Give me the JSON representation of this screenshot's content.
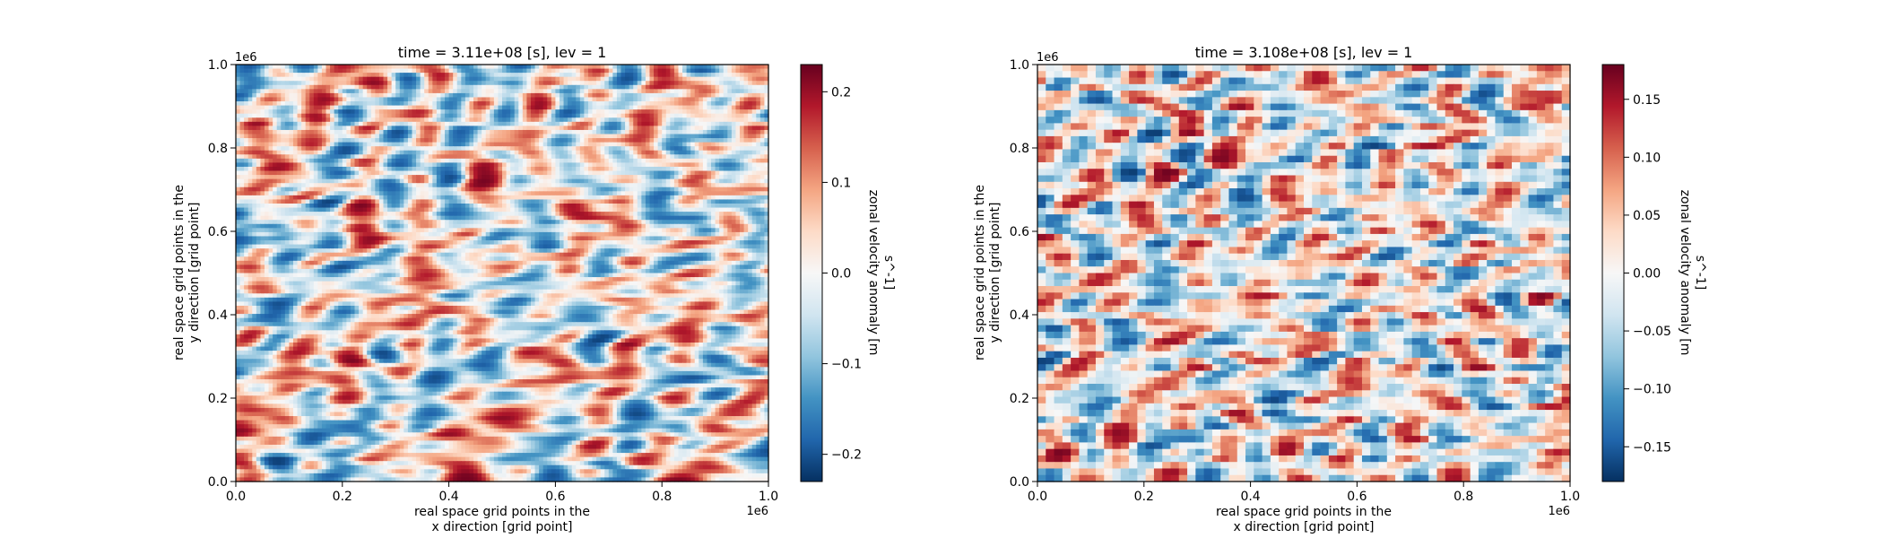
{
  "chart_data": [
    {
      "type": "heatmap",
      "title": "time = 3.11e+08 [s], lev = 1",
      "xlabel_line1": "real space grid points in the",
      "xlabel_line2": "x direction [grid point]",
      "ylabel_line1": "real space grid points in the",
      "ylabel_line2": "y direction [grid point]",
      "x_offset_label": "1e6",
      "y_offset_label": "1e6",
      "xlim": [
        0,
        1.0
      ],
      "ylim": [
        0,
        1.0
      ],
      "x_ticks": [
        0.0,
        0.2,
        0.4,
        0.6,
        0.8,
        1.0
      ],
      "x_tick_labels": [
        "0.0",
        "0.2",
        "0.4",
        "0.6",
        "0.8",
        "1.0"
      ],
      "y_ticks": [
        0.0,
        0.2,
        0.4,
        0.6,
        0.8,
        1.0
      ],
      "y_tick_labels": [
        "0.0",
        "0.2",
        "0.4",
        "0.6",
        "0.8",
        "1.0"
      ],
      "grid_resolution": "fine (smooth field)",
      "colormap": "RdBu_r",
      "color_range": [
        -0.23,
        0.23
      ],
      "colorbar_label_line1": "zonal velocity anomaly [m",
      "colorbar_label_line2": "s^-1]",
      "colorbar_ticks": [
        -0.2,
        -0.1,
        0.0,
        0.1,
        0.2
      ],
      "colorbar_tick_labels": [
        "−0.2",
        "−0.1",
        "0.0",
        "0.1",
        "0.2"
      ]
    },
    {
      "type": "heatmap",
      "title": "time = 3.108e+08 [s], lev = 1",
      "xlabel_line1": "real space grid points in the",
      "xlabel_line2": "x direction [grid point]",
      "ylabel_line1": "real space grid points in the",
      "ylabel_line2": "y direction [grid point]",
      "x_offset_label": "1e6",
      "y_offset_label": "1e6",
      "xlim": [
        0,
        1.0
      ],
      "ylim": [
        0,
        1.0
      ],
      "x_ticks": [
        0.0,
        0.2,
        0.4,
        0.6,
        0.8,
        1.0
      ],
      "x_tick_labels": [
        "0.0",
        "0.2",
        "0.4",
        "0.6",
        "0.8",
        "1.0"
      ],
      "y_ticks": [
        0.0,
        0.2,
        0.4,
        0.6,
        0.8,
        1.0
      ],
      "y_tick_labels": [
        "0.0",
        "0.2",
        "0.4",
        "0.6",
        "0.8",
        "1.0"
      ],
      "grid_resolution": "coarse (pixelated field)",
      "colormap": "RdBu_r",
      "color_range": [
        -0.18,
        0.18
      ],
      "colorbar_label_line1": "zonal velocity anomaly [m",
      "colorbar_label_line2": "s^-1]",
      "colorbar_ticks": [
        -0.15,
        -0.1,
        -0.05,
        0.0,
        0.05,
        0.1,
        0.15
      ],
      "colorbar_tick_labels": [
        "−0.15",
        "−0.10",
        "−0.05",
        "0.00",
        "0.05",
        "0.10",
        "0.15"
      ]
    }
  ]
}
